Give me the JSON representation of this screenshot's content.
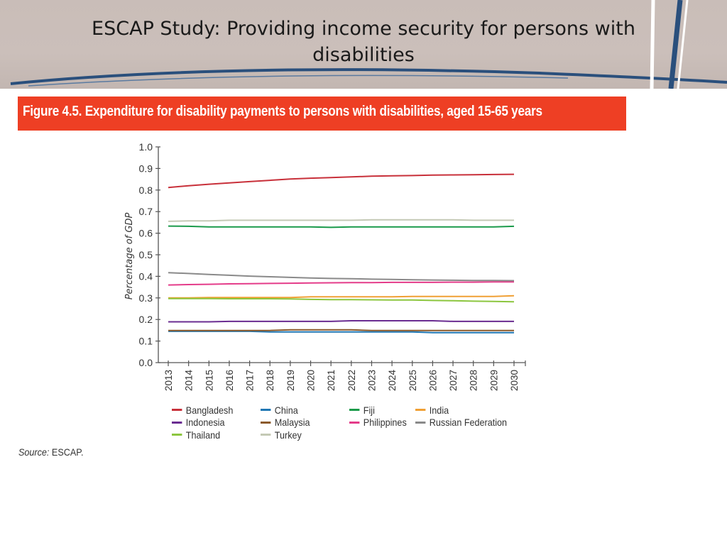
{
  "slide": {
    "title": "ESCAP Study: Providing income security for persons with disabilities"
  },
  "figure": {
    "title": "Figure 4.5. Expenditure for disability payments to persons with disabilities, aged 15-65 years",
    "banner_color": "#ee3f24"
  },
  "source": {
    "label": "Source:",
    "text": "ESCAP."
  },
  "chart_data": {
    "type": "line",
    "title": "Figure 4.5. Expenditure for disability payments to persons with disabilities, aged 15-65 years",
    "xlabel": "",
    "ylabel": "Percentage of GDP",
    "ylim": [
      0,
      1.0
    ],
    "yticks": [
      "0.0",
      "0.1",
      "0.2",
      "0.3",
      "0.4",
      "0.5",
      "0.6",
      "0.7",
      "0.8",
      "0.9",
      "1.0"
    ],
    "x": [
      "2013",
      "2014",
      "2015",
      "2016",
      "2017",
      "2018",
      "2019",
      "2020",
      "2021",
      "2022",
      "2023",
      "2024",
      "2025",
      "2026",
      "2027",
      "2028",
      "2029",
      "2030"
    ],
    "grid": false,
    "legend_position": "bottom",
    "series": [
      {
        "name": "Bangladesh",
        "color": "#c8303a",
        "values": [
          0.812,
          0.82,
          0.827,
          0.833,
          0.839,
          0.845,
          0.851,
          0.855,
          0.858,
          0.861,
          0.864,
          0.866,
          0.867,
          0.869,
          0.87,
          0.871,
          0.872,
          0.873
        ]
      },
      {
        "name": "China",
        "color": "#1f77b4",
        "values": [
          0.145,
          0.145,
          0.145,
          0.145,
          0.145,
          0.142,
          0.142,
          0.142,
          0.142,
          0.142,
          0.142,
          0.142,
          0.142,
          0.139,
          0.139,
          0.139,
          0.139,
          0.139
        ]
      },
      {
        "name": "Fiji",
        "color": "#1a9a4a",
        "values": [
          0.633,
          0.632,
          0.629,
          0.629,
          0.629,
          0.629,
          0.629,
          0.629,
          0.627,
          0.629,
          0.629,
          0.629,
          0.629,
          0.629,
          0.629,
          0.629,
          0.629,
          0.632
        ]
      },
      {
        "name": "India",
        "color": "#f0a035",
        "values": [
          0.3,
          0.3,
          0.302,
          0.302,
          0.302,
          0.302,
          0.302,
          0.305,
          0.305,
          0.305,
          0.305,
          0.305,
          0.307,
          0.307,
          0.307,
          0.307,
          0.307,
          0.31
        ]
      },
      {
        "name": "Indonesia",
        "color": "#6a2c91",
        "values": [
          0.189,
          0.189,
          0.189,
          0.191,
          0.191,
          0.191,
          0.191,
          0.191,
          0.191,
          0.194,
          0.194,
          0.194,
          0.194,
          0.194,
          0.191,
          0.191,
          0.191,
          0.191
        ]
      },
      {
        "name": "Malaysia",
        "color": "#8b5a2b",
        "values": [
          0.149,
          0.149,
          0.149,
          0.149,
          0.149,
          0.149,
          0.152,
          0.152,
          0.152,
          0.152,
          0.149,
          0.149,
          0.149,
          0.149,
          0.149,
          0.149,
          0.149,
          0.149
        ]
      },
      {
        "name": "Philippines",
        "color": "#e43c8a",
        "values": [
          0.36,
          0.362,
          0.363,
          0.365,
          0.366,
          0.367,
          0.368,
          0.369,
          0.37,
          0.371,
          0.371,
          0.372,
          0.372,
          0.372,
          0.373,
          0.373,
          0.374,
          0.374
        ]
      },
      {
        "name": "Russian Federation",
        "color": "#8a8a8a",
        "values": [
          0.417,
          0.413,
          0.409,
          0.405,
          0.401,
          0.398,
          0.395,
          0.392,
          0.39,
          0.389,
          0.387,
          0.386,
          0.384,
          0.383,
          0.382,
          0.381,
          0.381,
          0.38
        ]
      },
      {
        "name": "Thailand",
        "color": "#8cc63f",
        "values": [
          0.297,
          0.297,
          0.297,
          0.296,
          0.296,
          0.296,
          0.295,
          0.293,
          0.292,
          0.292,
          0.291,
          0.29,
          0.29,
          0.288,
          0.287,
          0.285,
          0.284,
          0.282
        ]
      },
      {
        "name": "Turkey",
        "color": "#c4c9b5",
        "values": [
          0.655,
          0.657,
          0.657,
          0.66,
          0.66,
          0.66,
          0.66,
          0.66,
          0.66,
          0.66,
          0.662,
          0.662,
          0.662,
          0.662,
          0.662,
          0.66,
          0.66,
          0.66
        ]
      }
    ]
  }
}
